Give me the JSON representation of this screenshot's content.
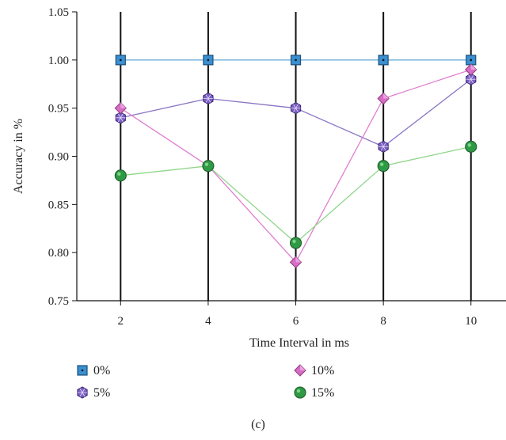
{
  "chart_data": {
    "type": "line",
    "title": "",
    "xlabel": "Time Interval in ms",
    "ylabel": "Accuracy in %",
    "x": [
      2,
      4,
      6,
      8,
      10
    ],
    "xticks": [
      "2",
      "4",
      "6",
      "8",
      "10"
    ],
    "yticks": [
      "0.75",
      "0.80",
      "0.85",
      "0.90",
      "0.95",
      "1.00",
      "1.05"
    ],
    "xlim": [
      1,
      10.8
    ],
    "ylim": [
      0.75,
      1.05
    ],
    "grid": "vertical lines at each x tick",
    "legend_position": "below",
    "caption": "(c)",
    "series": [
      {
        "name": "0%",
        "values": [
          1.0,
          1.0,
          1.0,
          1.0,
          1.0
        ],
        "marker": "square",
        "color": "#3a8fd0",
        "line_color": "#6aaed8"
      },
      {
        "name": "5%",
        "values": [
          0.94,
          0.96,
          0.95,
          0.91,
          0.98
        ],
        "marker": "hexagon",
        "color": "#7b5fc0",
        "line_color": "#8a74c4"
      },
      {
        "name": "10%",
        "values": [
          0.95,
          0.89,
          0.79,
          0.96,
          0.99
        ],
        "marker": "diamond",
        "color": "#d66cc4",
        "line_color": "#e07fd0"
      },
      {
        "name": "15%",
        "values": [
          0.88,
          0.89,
          0.81,
          0.89,
          0.91
        ],
        "marker": "circle",
        "color": "#2f9a45",
        "line_color": "#8fd68a"
      }
    ]
  }
}
